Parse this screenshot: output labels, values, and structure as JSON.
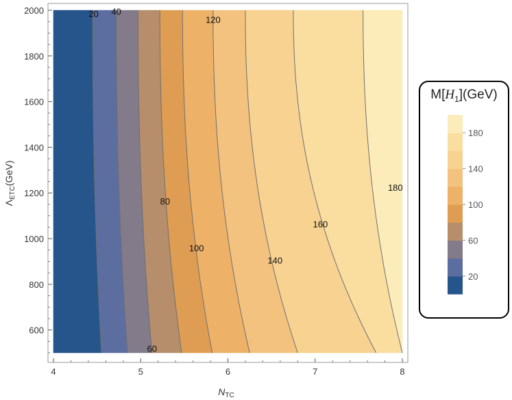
{
  "chart_data": {
    "type": "contour",
    "xlabel": "N",
    "xlabel_sub": "TC",
    "ylabel": "Λ",
    "ylabel_sub": "ETC",
    "ylabel_suffix": "(GeV)",
    "xlim": [
      4,
      8
    ],
    "ylim": [
      500,
      2000
    ],
    "x_ticks": [
      "4",
      "5",
      "6",
      "7",
      "8"
    ],
    "y_ticks": [
      "600",
      "800",
      "1000",
      "1200",
      "1400",
      "1600",
      "1800",
      "2000"
    ],
    "contour_levels": [
      20,
      40,
      60,
      80,
      100,
      120,
      140,
      160,
      180
    ],
    "contours": [
      {
        "level": 20,
        "x_at_ylow": 4.55,
        "x_at_yhigh": 4.45
      },
      {
        "level": 40,
        "x_at_ylow": 4.85,
        "x_at_yhigh": 4.72
      },
      {
        "level": 60,
        "x_at_ylow": 5.13,
        "x_at_yhigh": 4.97
      },
      {
        "level": 80,
        "x_at_ylow": 5.47,
        "x_at_yhigh": 5.22
      },
      {
        "level": 100,
        "x_at_ylow": 5.82,
        "x_at_yhigh": 5.48
      },
      {
        "level": 120,
        "x_at_ylow": 6.25,
        "x_at_yhigh": 5.83
      },
      {
        "level": 140,
        "x_at_ylow": 6.8,
        "x_at_yhigh": 6.2
      },
      {
        "level": 160,
        "x_at_ylow": 7.7,
        "x_at_yhigh": 6.75
      },
      {
        "level": 180,
        "x_at_ylow": 8.0,
        "x_at_yhigh": 7.55
      }
    ],
    "contour_labels": [
      {
        "text": "20",
        "x": 4.46,
        "y": 1985
      },
      {
        "text": "40",
        "x": 4.72,
        "y": 1995
      },
      {
        "text": "120",
        "x": 5.83,
        "y": 1960
      },
      {
        "text": "80",
        "x": 5.28,
        "y": 1165
      },
      {
        "text": "100",
        "x": 5.64,
        "y": 960
      },
      {
        "text": "60",
        "x": 5.13,
        "y": 520
      },
      {
        "text": "140",
        "x": 6.54,
        "y": 905
      },
      {
        "text": "160",
        "x": 7.06,
        "y": 1065
      },
      {
        "text": "180",
        "x": 7.92,
        "y": 1225
      }
    ],
    "colors": [
      "#26558c",
      "#5c6ea0",
      "#837a8a",
      "#b68e6c",
      "#de9d52",
      "#eeb168",
      "#f3c27f",
      "#f7d291",
      "#fadea0",
      "#fcecb9"
    ]
  },
  "legend": {
    "title_prefix": "M[",
    "title_var": "H",
    "title_sub": "1",
    "title_suffix": "](GeV)",
    "ticks": [
      "20",
      "60",
      "100",
      "140",
      "180"
    ],
    "tick_values": [
      20,
      60,
      100,
      140,
      180
    ],
    "range": [
      0,
      200
    ]
  }
}
